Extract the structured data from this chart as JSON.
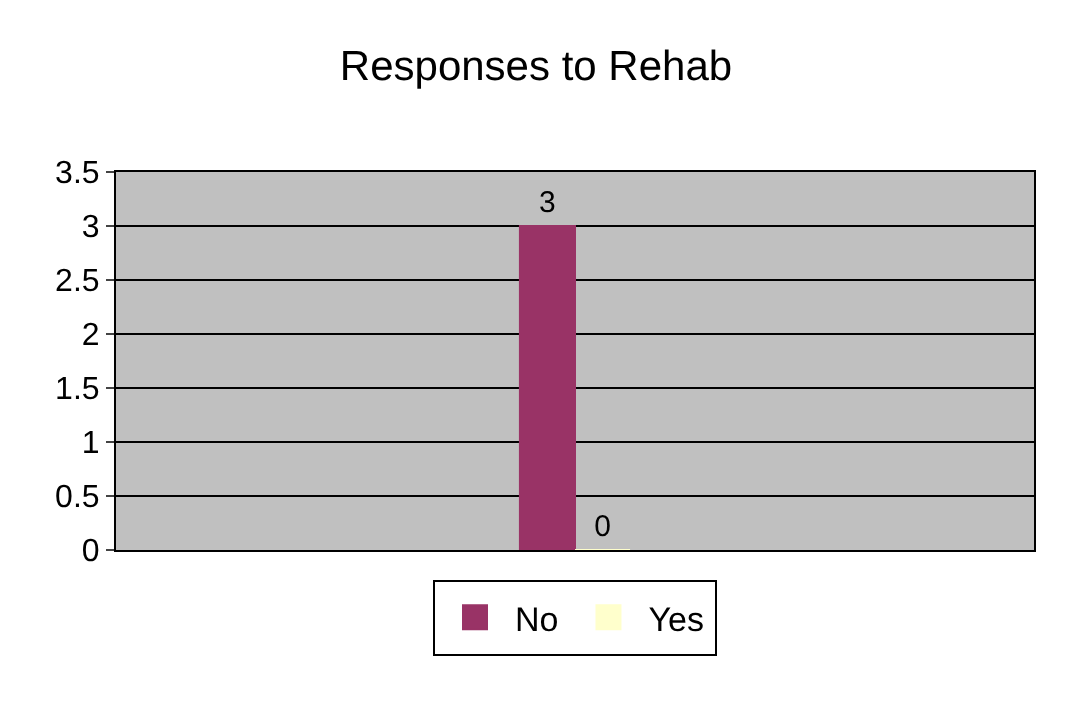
{
  "chart_data": {
    "type": "bar",
    "title": "Responses to Rehab",
    "categories": [
      null
    ],
    "series": [
      {
        "name": "No",
        "color": "#993366",
        "values": [
          3
        ]
      },
      {
        "name": "Yes",
        "color": "#ffffcc",
        "values": [
          0
        ]
      }
    ],
    "ylim": [
      0,
      3.5
    ],
    "yticks": [
      0,
      0.5,
      1,
      1.5,
      2,
      2.5,
      3,
      3.5
    ],
    "grid": "y",
    "legend": "bottom",
    "data_labels": true,
    "tick_labels": "y"
  }
}
